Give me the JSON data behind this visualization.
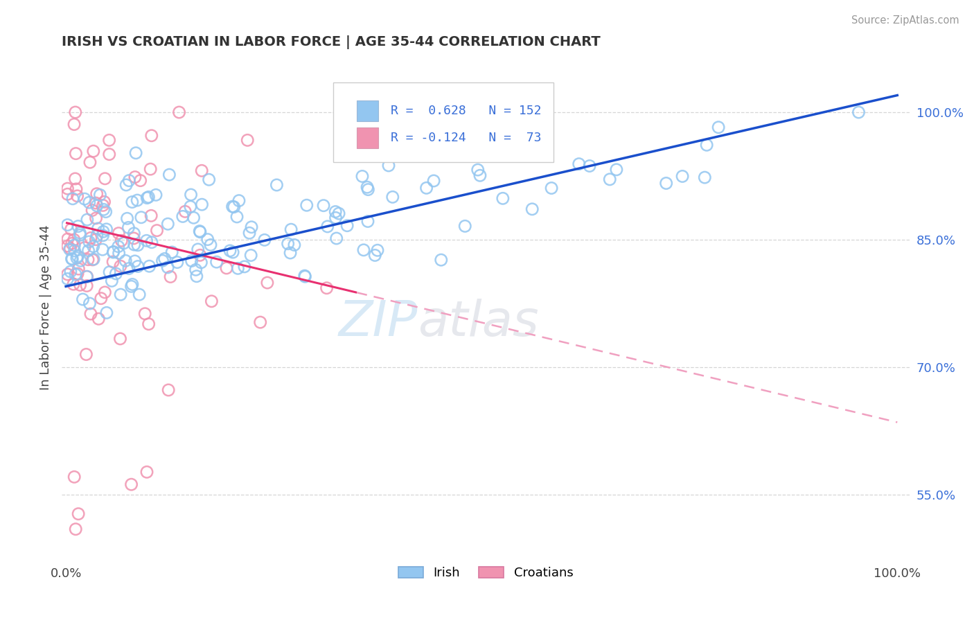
{
  "title": "IRISH VS CROATIAN IN LABOR FORCE | AGE 35-44 CORRELATION CHART",
  "source": "Source: ZipAtlas.com",
  "ylabel": "In Labor Force | Age 35-44",
  "ytick_vals": [
    0.55,
    0.7,
    0.85,
    1.0
  ],
  "ytick_labels": [
    "55.0%",
    "70.0%",
    "85.0%",
    "100.0%"
  ],
  "legend_irish_R": "0.628",
  "legend_irish_N": "152",
  "legend_croatian_R": "-0.124",
  "legend_croatian_N": "73",
  "irish_color": "#93c6f0",
  "croatian_color": "#f093b0",
  "irish_line_color": "#1a4fcc",
  "croatian_line_solid_color": "#e83070",
  "croatian_line_dash_color": "#f0a0c0",
  "background_color": "#ffffff",
  "grid_color": "#cccccc",
  "ytick_color": "#3a6fd8",
  "title_color": "#333333",
  "source_color": "#999999",
  "watermark_text": "ZIP atlas",
  "watermark_color": "#d0e8f8",
  "watermark_color2": "#c8d8e8"
}
